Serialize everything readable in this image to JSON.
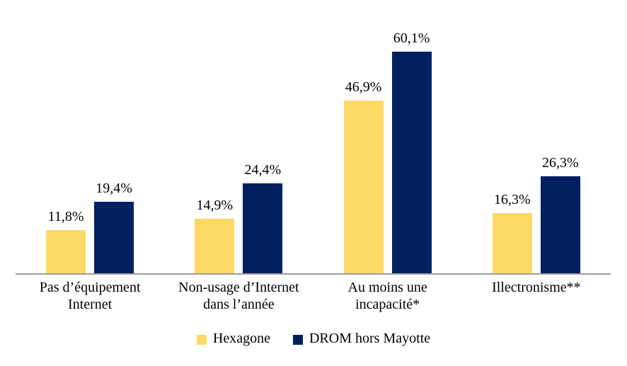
{
  "chart_data": {
    "type": "bar",
    "title": "",
    "xlabel": "",
    "ylabel": "",
    "ylim": [
      0,
      65
    ],
    "grid": false,
    "legend_position": "bottom",
    "decimal_separator": ",",
    "value_suffix": "%",
    "background_color": "#FFFFFF",
    "axis_line_color": "#9E9E9E",
    "text_color": "#000000",
    "categories": [
      {
        "label": "Pas d’équipement Internet",
        "lines": [
          "Pas d’équipement",
          "Internet"
        ]
      },
      {
        "label": "Non-usage d’Internet dans l’année",
        "lines": [
          "Non-usage d’Internet",
          "dans l’année"
        ]
      },
      {
        "label": "Au moins une incapacité*",
        "lines": [
          "Au moins une",
          "incapacité*"
        ]
      },
      {
        "label": "Illectronisme**",
        "lines": [
          "Illectronisme**"
        ]
      }
    ],
    "series": [
      {
        "key": "hexagone",
        "name": "Hexagone",
        "color": "#FFD966",
        "values": [
          11.8,
          14.9,
          46.9,
          16.3
        ],
        "labels": [
          "11,8%",
          "14,9%",
          "46,9%",
          "16,3%"
        ]
      },
      {
        "key": "drom-hors-mayotte",
        "name": "DROM hors Mayotte",
        "color": "#002060",
        "values": [
          19.4,
          24.4,
          60.1,
          26.3
        ],
        "labels": [
          "19,4%",
          "24,4%",
          "60,1%",
          "26,3%"
        ]
      }
    ]
  }
}
